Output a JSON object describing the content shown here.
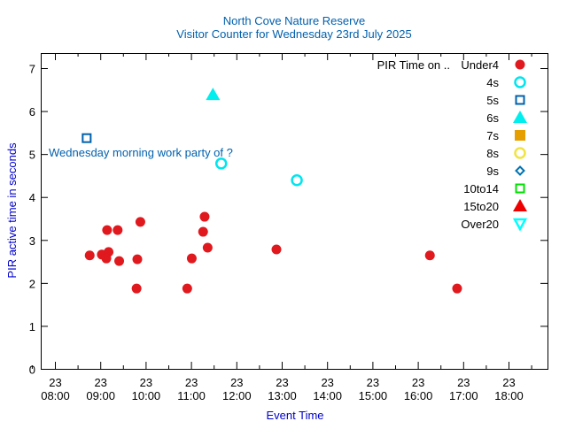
{
  "chart_data": {
    "type": "scatter",
    "title": "North Cove Nature Reserve",
    "subtitle": "Visitor Counter for Wednesday 23rd July 2025",
    "xlabel": "Event Time",
    "ylabel": "PIR active time in seconds",
    "xlim_hours": [
      7.7,
      19.0
    ],
    "ylim": [
      0,
      7.35
    ],
    "x_ticks": [
      {
        "h": 8,
        "day": "23",
        "time": "08:00"
      },
      {
        "h": 9,
        "day": "23",
        "time": "09:00"
      },
      {
        "h": 10,
        "day": "23",
        "time": "10:00"
      },
      {
        "h": 11,
        "day": "23",
        "time": "11:00"
      },
      {
        "h": 12,
        "day": "23",
        "time": "12:00"
      },
      {
        "h": 13,
        "day": "23",
        "time": "13:00"
      },
      {
        "h": 14,
        "day": "23",
        "time": "14:00"
      },
      {
        "h": 15,
        "day": "23",
        "time": "15:00"
      },
      {
        "h": 16,
        "day": "23",
        "time": "16:00"
      },
      {
        "h": 17,
        "day": "23",
        "time": "17:00"
      },
      {
        "h": 18,
        "day": "23",
        "time": "18:00"
      }
    ],
    "y_ticks": [
      "0",
      "1",
      "2",
      "3",
      "4",
      "5",
      "6",
      "7"
    ],
    "legend_title": "PIR Time on ..",
    "legend_position": "top-right",
    "annotation": {
      "text": "Wednesday morning work party of ?",
      "x": "08:54",
      "y": 5.0
    },
    "series": [
      {
        "name": "Under4",
        "marker": "circle-filled",
        "color": "#e0191e",
        "points": [
          [
            "08:46",
            2.64
          ],
          [
            "09:02",
            2.66
          ],
          [
            "09:09",
            3.23
          ],
          [
            "09:23",
            3.23
          ],
          [
            "09:11",
            2.72
          ],
          [
            "09:08",
            2.57
          ],
          [
            "09:25",
            2.51
          ],
          [
            "09:53",
            3.42
          ],
          [
            "09:49",
            2.55
          ],
          [
            "09:48",
            1.87
          ],
          [
            "10:55",
            1.87
          ],
          [
            "11:01",
            2.57
          ],
          [
            "11:18",
            3.54
          ],
          [
            "11:16",
            3.19
          ],
          [
            "11:22",
            2.82
          ],
          [
            "12:53",
            2.78
          ],
          [
            "16:16",
            2.64
          ],
          [
            "16:52",
            1.87
          ]
        ]
      },
      {
        "name": "4s",
        "marker": "circle-open",
        "color": "#00e5ee",
        "points": [
          [
            "11:40",
            4.78
          ],
          [
            "13:20",
            4.39
          ]
        ]
      },
      {
        "name": "5s",
        "marker": "square-open",
        "color": "#0060ad",
        "points": [
          [
            "08:42",
            5.37
          ]
        ]
      },
      {
        "name": "6s",
        "marker": "triangle-filled",
        "color": "#00eeee",
        "points": [
          [
            "11:29",
            6.38
          ]
        ]
      },
      {
        "name": "7s",
        "marker": "square-filled",
        "color": "#e69f00",
        "points": []
      },
      {
        "name": "8s",
        "marker": "circle-open",
        "color": "#f0e442",
        "points": []
      },
      {
        "name": "9s",
        "marker": "diamond-open",
        "color": "#0072b2",
        "points": []
      },
      {
        "name": "10to14",
        "marker": "square-open",
        "color": "#00e000",
        "points": []
      },
      {
        "name": "15to20",
        "marker": "triangle-filled",
        "color": "#ee0000",
        "points": []
      },
      {
        "name": "Over20",
        "marker": "triangle-down-open",
        "color": "#00ffff",
        "points": []
      }
    ]
  }
}
